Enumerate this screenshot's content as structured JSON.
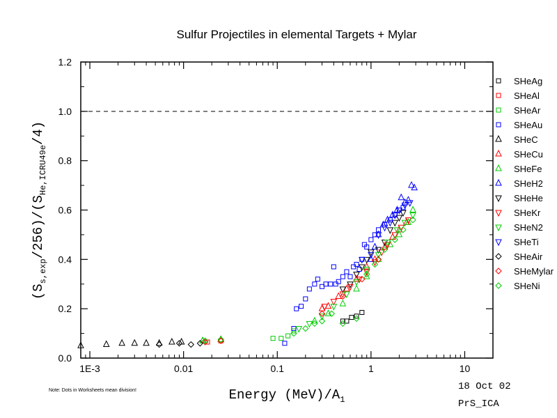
{
  "chart_data": {
    "type": "scatter",
    "title": "Sulfur Projectiles in elemental Targets + Mylar",
    "xlabel": {
      "main": "Energy (MeV)/A",
      "sub": "1"
    },
    "ylabel": {
      "p1": "(S",
      "s1": "s,exp",
      "p2": "/256)/(S",
      "s2": "He,ICRU49e",
      "p3": "/4)"
    },
    "x_scale": "log",
    "xlim": [
      0.0008,
      20
    ],
    "ylim": [
      0.0,
      1.2
    ],
    "x_ticks": [
      {
        "value": 0.001,
        "label": "1E-3"
      },
      {
        "value": 0.01,
        "label": "0.01"
      },
      {
        "value": 0.1,
        "label": "0.1"
      },
      {
        "value": 1,
        "label": "1"
      },
      {
        "value": 10,
        "label": "10"
      }
    ],
    "y_ticks": [
      {
        "value": 0.0,
        "label": "0.0"
      },
      {
        "value": 0.2,
        "label": "0.2"
      },
      {
        "value": 0.4,
        "label": "0.4"
      },
      {
        "value": 0.6,
        "label": "0.6"
      },
      {
        "value": 0.8,
        "label": "0.8"
      },
      {
        "value": 1.0,
        "label": "1.0"
      },
      {
        "value": 1.2,
        "label": "1.2"
      }
    ],
    "reference_line": {
      "y": 1.0,
      "style": "dashed"
    },
    "grid": false,
    "legend_position": "right",
    "series": [
      {
        "name": "SHeAg",
        "marker": "square",
        "color": "#000000",
        "points": [
          [
            0.5,
            0.15
          ],
          [
            0.55,
            0.15
          ],
          [
            0.62,
            0.165
          ],
          [
            0.7,
            0.17
          ],
          [
            0.8,
            0.185
          ]
        ]
      },
      {
        "name": "SHeAl",
        "marker": "square",
        "color": "#ff0000",
        "points": [
          [
            0.018,
            0.065
          ],
          [
            0.025,
            0.07
          ]
        ]
      },
      {
        "name": "SHeAr",
        "marker": "square",
        "color": "#00cc00",
        "points": [
          [
            0.09,
            0.08
          ],
          [
            0.11,
            0.08
          ],
          [
            0.13,
            0.09
          ],
          [
            0.15,
            0.11
          ]
        ]
      },
      {
        "name": "SHeAu",
        "marker": "square",
        "color": "#0000ff",
        "points": [
          [
            0.12,
            0.06
          ],
          [
            0.15,
            0.12
          ],
          [
            0.16,
            0.2
          ],
          [
            0.18,
            0.21
          ],
          [
            0.2,
            0.24
          ],
          [
            0.22,
            0.28
          ],
          [
            0.25,
            0.3
          ],
          [
            0.27,
            0.32
          ],
          [
            0.3,
            0.29
          ],
          [
            0.33,
            0.3
          ],
          [
            0.37,
            0.3
          ],
          [
            0.4,
            0.37
          ],
          [
            0.42,
            0.3
          ],
          [
            0.45,
            0.31
          ],
          [
            0.5,
            0.33
          ],
          [
            0.55,
            0.35
          ],
          [
            0.6,
            0.33
          ],
          [
            0.65,
            0.37
          ],
          [
            0.7,
            0.38
          ],
          [
            0.75,
            0.36
          ],
          [
            0.8,
            0.4
          ],
          [
            0.85,
            0.46
          ],
          [
            0.9,
            0.45
          ],
          [
            1.0,
            0.48
          ],
          [
            1.1,
            0.5
          ],
          [
            1.2,
            0.52
          ],
          [
            1.4,
            0.54
          ],
          [
            1.6,
            0.56
          ],
          [
            1.8,
            0.58
          ],
          [
            2.0,
            0.6
          ],
          [
            2.2,
            0.61
          ]
        ]
      },
      {
        "name": "SHeC",
        "marker": "triangle-up",
        "color": "#000000",
        "points": [
          [
            0.0008,
            0.05
          ],
          [
            0.0015,
            0.055
          ],
          [
            0.0022,
            0.06
          ],
          [
            0.003,
            0.06
          ],
          [
            0.004,
            0.06
          ],
          [
            0.0055,
            0.06
          ],
          [
            0.0075,
            0.065
          ],
          [
            0.0095,
            0.065
          ],
          [
            0.016,
            0.07
          ],
          [
            0.025,
            0.075
          ]
        ]
      },
      {
        "name": "SHeCu",
        "marker": "triangle-up",
        "color": "#ff0000",
        "points": [
          [
            0.3,
            0.2
          ],
          [
            0.35,
            0.21
          ],
          [
            0.45,
            0.25
          ],
          [
            0.55,
            0.28
          ],
          [
            0.7,
            0.32
          ],
          [
            0.9,
            0.37
          ],
          [
            1.1,
            0.4
          ],
          [
            1.4,
            0.45
          ],
          [
            1.7,
            0.49
          ],
          [
            2.0,
            0.52
          ],
          [
            2.4,
            0.55
          ]
        ]
      },
      {
        "name": "SHeFe",
        "marker": "triangle-up",
        "color": "#00cc00",
        "points": [
          [
            0.016,
            0.07
          ],
          [
            0.025,
            0.075
          ],
          [
            0.25,
            0.15
          ],
          [
            0.35,
            0.18
          ],
          [
            0.5,
            0.22
          ],
          [
            0.7,
            0.28
          ],
          [
            0.9,
            0.33
          ],
          [
            1.2,
            0.4
          ],
          [
            1.6,
            0.46
          ],
          [
            2.0,
            0.5
          ],
          [
            2.5,
            0.55
          ],
          [
            2.8,
            0.6
          ]
        ]
      },
      {
        "name": "SHeH2",
        "marker": "triangle-up",
        "color": "#0000ff",
        "points": [
          [
            1.0,
            0.4
          ],
          [
            1.1,
            0.45
          ],
          [
            1.2,
            0.5
          ],
          [
            1.35,
            0.54
          ],
          [
            1.5,
            0.56
          ],
          [
            1.7,
            0.58
          ],
          [
            1.9,
            0.6
          ],
          [
            2.1,
            0.65
          ],
          [
            2.3,
            0.63
          ],
          [
            2.5,
            0.64
          ],
          [
            2.7,
            0.7
          ],
          [
            2.9,
            0.69
          ]
        ]
      },
      {
        "name": "SHeHe",
        "marker": "triangle-down",
        "color": "#000000",
        "points": [
          [
            0.5,
            0.28
          ],
          [
            0.6,
            0.3
          ],
          [
            0.7,
            0.34
          ],
          [
            0.8,
            0.37
          ],
          [
            0.9,
            0.4
          ],
          [
            1.0,
            0.43
          ],
          [
            1.2,
            0.44
          ],
          [
            1.4,
            0.47
          ],
          [
            1.6,
            0.52
          ],
          [
            1.8,
            0.55
          ],
          [
            2.0,
            0.57
          ],
          [
            2.2,
            0.59
          ]
        ]
      },
      {
        "name": "SHeKr",
        "marker": "triangle-down",
        "color": "#ff0000",
        "points": [
          [
            0.32,
            0.21
          ],
          [
            0.4,
            0.23
          ],
          [
            0.5,
            0.26
          ],
          [
            0.6,
            0.29
          ],
          [
            0.75,
            0.32
          ],
          [
            0.9,
            0.35
          ],
          [
            1.1,
            0.39
          ],
          [
            1.3,
            0.43
          ],
          [
            1.5,
            0.46
          ],
          [
            1.8,
            0.5
          ],
          [
            2.1,
            0.53
          ],
          [
            2.5,
            0.56
          ]
        ]
      },
      {
        "name": "SHeN2",
        "marker": "triangle-down",
        "color": "#00cc00",
        "points": [
          [
            0.17,
            0.12
          ],
          [
            0.22,
            0.14
          ],
          [
            0.3,
            0.17
          ],
          [
            0.4,
            0.21
          ],
          [
            0.55,
            0.26
          ],
          [
            0.7,
            0.31
          ],
          [
            0.9,
            0.36
          ],
          [
            1.2,
            0.42
          ],
          [
            1.5,
            0.47
          ],
          [
            1.9,
            0.52
          ],
          [
            2.3,
            0.55
          ],
          [
            2.8,
            0.58
          ]
        ]
      },
      {
        "name": "SHeTi",
        "marker": "triangle-down",
        "color": "#0000ff",
        "points": [
          [
            0.8,
            0.4
          ],
          [
            1.0,
            0.42
          ],
          [
            1.2,
            0.5
          ],
          [
            1.4,
            0.53
          ],
          [
            1.6,
            0.55
          ],
          [
            1.8,
            0.58
          ],
          [
            2.0,
            0.6
          ],
          [
            2.3,
            0.62
          ],
          [
            2.6,
            0.63
          ]
        ]
      },
      {
        "name": "SHeAir",
        "marker": "diamond",
        "color": "#000000",
        "points": [
          [
            0.0055,
            0.055
          ],
          [
            0.009,
            0.06
          ],
          [
            0.012,
            0.055
          ],
          [
            0.015,
            0.06
          ]
        ]
      },
      {
        "name": "SHeMylar",
        "marker": "diamond",
        "color": "#ff0000",
        "points": [
          [
            0.017,
            0.065
          ],
          [
            0.025,
            0.07
          ],
          [
            0.3,
            0.18
          ],
          [
            0.5,
            0.25
          ],
          [
            0.8,
            0.32
          ],
          [
            1.2,
            0.4
          ]
        ]
      },
      {
        "name": "SHeNi",
        "marker": "diamond",
        "color": "#00cc00",
        "points": [
          [
            0.017,
            0.07
          ],
          [
            0.025,
            0.075
          ],
          [
            0.15,
            0.1
          ],
          [
            0.2,
            0.12
          ],
          [
            0.25,
            0.14
          ],
          [
            0.3,
            0.15
          ],
          [
            0.38,
            0.18
          ],
          [
            0.5,
            0.14
          ],
          [
            0.7,
            0.16
          ],
          [
            0.9,
            0.34
          ],
          [
            1.1,
            0.38
          ],
          [
            1.4,
            0.44
          ],
          [
            1.8,
            0.48
          ],
          [
            2.2,
            0.52
          ],
          [
            2.8,
            0.56
          ]
        ]
      }
    ]
  },
  "annotations": {
    "note": "Note: Dots in Worksheets mean division!",
    "date": "18 Oct 02",
    "file": "PrS_ICA"
  }
}
